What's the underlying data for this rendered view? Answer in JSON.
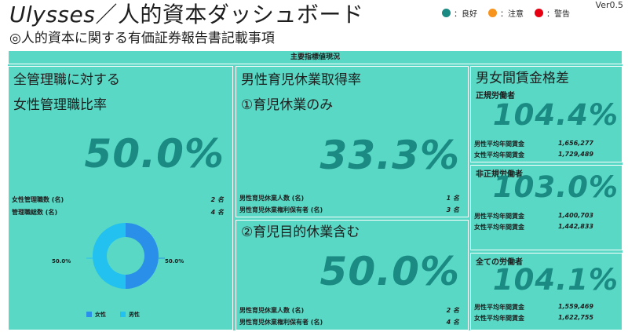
{
  "header": {
    "title_en": "Ulysses",
    "title_jp": "／人的資本ダッシュボード",
    "subtitle": "◎人的資本に関する有価証券報告書記載事項",
    "version": "Ver0.5"
  },
  "status_legend": [
    {
      "label": "：良好",
      "color": "#1a8a82"
    },
    {
      "label": "：注意",
      "color": "#f7941d"
    },
    {
      "label": "：警告",
      "color": "#e60012"
    }
  ],
  "board": {
    "header": "主要指標値現況"
  },
  "female_mgmt": {
    "title_line1": "全管理職に対する",
    "title_line2": "女性管理職比率",
    "value": "50.0%",
    "rows": [
      {
        "label": "女性管理職数 (名)",
        "value": "2 名"
      },
      {
        "label": "管理職総数 (名)",
        "value": "4 名"
      }
    ]
  },
  "childcare_leave": {
    "title_line1": "男性育児休業取得率",
    "title_line2": "①育児休業のみ",
    "value": "33.3%",
    "rows": [
      {
        "label": "男性育児休業人数 (名)",
        "value": "1 名"
      },
      {
        "label": "男性育児休業権利保有者 (名)",
        "value": "3 名"
      }
    ],
    "title_incl": "②育児目的休業含む",
    "value_incl": "50.0%",
    "rows_incl": [
      {
        "label": "男性育児休業人数 (名)",
        "value": "2 名"
      },
      {
        "label": "男性育児休業権利保有者 (名)",
        "value": "4 名"
      }
    ]
  },
  "wage_gap": {
    "title": "男女間賃金格差",
    "sections": [
      {
        "heading": "正規労働者",
        "value": "104.4%",
        "rows": [
          {
            "label": "男性平均年間賃金",
            "value": "1,656,277"
          },
          {
            "label": "女性平均年間賃金",
            "value": "1,729,489"
          }
        ]
      },
      {
        "heading": "非正規労働者",
        "value": "103.0%",
        "rows": [
          {
            "label": "男性平均年間賃金",
            "value": "1,400,703"
          },
          {
            "label": "女性平均年間賃金",
            "value": "1,442,833"
          }
        ]
      },
      {
        "heading": "全ての労働者",
        "value": "104.1%",
        "rows": [
          {
            "label": "男性平均年間賃金",
            "value": "1,559,469"
          },
          {
            "label": "女性平均年間賃金",
            "value": "1,622,755"
          }
        ]
      }
    ]
  },
  "chart_data": {
    "type": "pie",
    "categories": [
      "女性",
      "男性"
    ],
    "values": [
      50.0,
      50.0
    ],
    "data_labels": [
      "50.0%",
      "50.0%"
    ],
    "colors": [
      "#2a8fe8",
      "#22c1f0"
    ],
    "legend_position": "bottom"
  }
}
